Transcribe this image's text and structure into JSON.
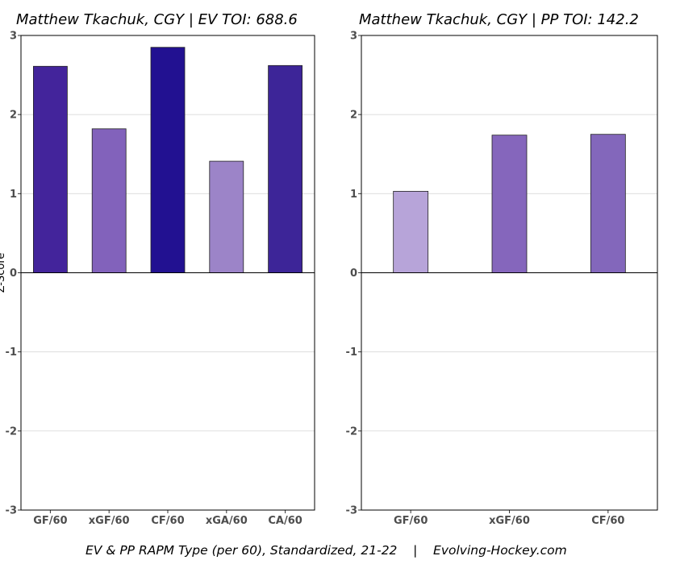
{
  "caption": "EV & PP RAPM Type (per 60), Standardized, 21-22    |    Evolving-Hockey.com",
  "chart_data": [
    {
      "type": "bar",
      "title": "Matthew Tkachuk, CGY  |  EV TOI: 688.6",
      "ylabel": "Z-Score",
      "xlabel": "",
      "ylim": [
        -3,
        3
      ],
      "yticks": [
        "3",
        "2",
        "1",
        "0",
        "-1",
        "-2",
        "-3"
      ],
      "grid": true,
      "categories": [
        "GF/60",
        "xGF/60",
        "CF/60",
        "xGA/60",
        "CA/60"
      ],
      "values": [
        2.61,
        1.82,
        2.85,
        1.41,
        2.62
      ],
      "colors": [
        "#43249b",
        "#8262bb",
        "#221191",
        "#9c84c8",
        "#3d2598"
      ]
    },
    {
      "type": "bar",
      "title": "Matthew Tkachuk, CGY  |  PP TOI: 142.2",
      "xlabel": "",
      "ylim": [
        -3,
        3
      ],
      "yticks": [
        "3",
        "2",
        "1",
        "0",
        "-1",
        "-2",
        "-3"
      ],
      "grid": true,
      "categories": [
        "GF/60",
        "xGF/60",
        "CF/60"
      ],
      "values": [
        1.03,
        1.74,
        1.75
      ],
      "colors": [
        "#b7a4d9",
        "#8566bc",
        "#8367bb"
      ]
    }
  ]
}
